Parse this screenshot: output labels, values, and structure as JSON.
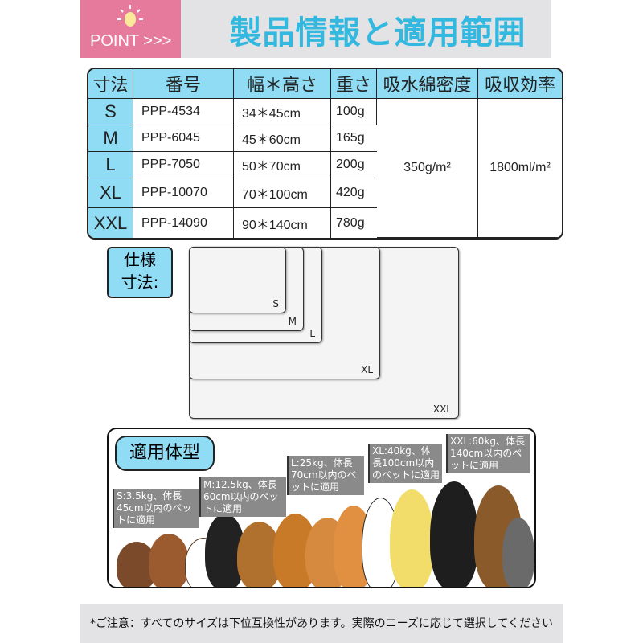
{
  "header": {
    "badge": "POINT >>>",
    "title": "製品情報と適用範囲",
    "icon": "lightbulb-icon"
  },
  "table": {
    "headers": [
      "寸法",
      "番号",
      "幅＊高さ",
      "重さ",
      "吸水綿密度",
      "吸収効率"
    ],
    "rows": [
      [
        "S",
        "PPP-4534",
        "34＊45cm",
        "100g"
      ],
      [
        "M",
        "PPP-6045",
        "45＊60cm",
        "165g"
      ],
      [
        "L",
        "PPP-7050",
        "50＊70cm",
        "200g"
      ],
      [
        "XL",
        "PPP-10070",
        "70＊100cm",
        "420g"
      ],
      [
        "XXL",
        "PPP-14090",
        "90＊140cm",
        "780g"
      ]
    ],
    "density": "350g/m²",
    "absorption": "1800ml/m²"
  },
  "sizes": {
    "label_line1": "仕様",
    "label_line2": "寸法:",
    "items": [
      "S",
      "M",
      "L",
      "XL",
      "XXL"
    ]
  },
  "pets": {
    "label": "適用体型",
    "tags": [
      "S:3.5kg、体長45cm以内のペットに適用",
      "M:12.5kg、体長60cm以内のペットに適用",
      "L:25kg、体長70cm以内のペットに適用",
      "XL:40kg、体長100cm以内のペットに適用",
      "XXL:60kg、体長140cm以内のペットに適用"
    ]
  },
  "footer": {
    "note": "*ご注意：すべてのサイズは下位互換性があります。実際のニーズに応じて選択してください"
  },
  "colors": {
    "accent": "#8fdcf4",
    "title": "#33b8e0",
    "pink": "#e67a9c"
  }
}
